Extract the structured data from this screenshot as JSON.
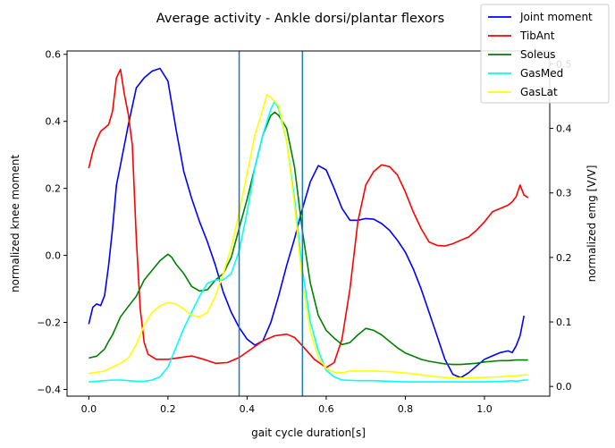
{
  "chart_data": {
    "type": "line",
    "title": "Average activity - Ankle dorsi/plantar flexors",
    "xlabel": "gait cycle duration[s]",
    "ylabel_left": "normalized knee moment",
    "ylabel_right": "normalized emg [V/V]",
    "xlim": [
      -0.055,
      1.165
    ],
    "ylim_left": [
      -0.42,
      0.61
    ],
    "ylim_right": [
      -0.015,
      0.52
    ],
    "xticks": [
      "0.0",
      "0.2",
      "0.4",
      "0.6",
      "0.8",
      "1.0"
    ],
    "xtick_values": [
      0,
      0.2,
      0.4,
      0.6,
      0.8,
      1.0
    ],
    "yticks_left": [
      "−0.4",
      "−0.2",
      "0.0",
      "0.2",
      "0.4",
      "0.6"
    ],
    "ytick_values_left": [
      -0.4,
      -0.2,
      0,
      0.2,
      0.4,
      0.6
    ],
    "yticks_right": [
      "0.0",
      "0.1",
      "0.2",
      "0.3",
      "0.4",
      "0.5"
    ],
    "ytick_values_right": [
      0,
      0.1,
      0.2,
      0.3,
      0.4,
      0.5
    ],
    "vlines": [
      0.38,
      0.54
    ],
    "vline_color": "#1f77b4",
    "legend_position": "top-right",
    "series": [
      {
        "name": "Joint moment",
        "axis": "left",
        "color": "#0000ff",
        "points": [
          [
            0.0,
            -0.205
          ],
          [
            0.01,
            -0.155
          ],
          [
            0.02,
            -0.145
          ],
          [
            0.03,
            -0.15
          ],
          [
            0.04,
            -0.12
          ],
          [
            0.05,
            -0.03
          ],
          [
            0.06,
            0.08
          ],
          [
            0.07,
            0.21
          ],
          [
            0.08,
            0.27
          ],
          [
            0.1,
            0.39
          ],
          [
            0.12,
            0.5
          ],
          [
            0.14,
            0.53
          ],
          [
            0.16,
            0.55
          ],
          [
            0.18,
            0.558
          ],
          [
            0.2,
            0.52
          ],
          [
            0.22,
            0.38
          ],
          [
            0.24,
            0.25
          ],
          [
            0.26,
            0.17
          ],
          [
            0.28,
            0.1
          ],
          [
            0.3,
            0.04
          ],
          [
            0.32,
            -0.03
          ],
          [
            0.34,
            -0.11
          ],
          [
            0.36,
            -0.17
          ],
          [
            0.38,
            -0.215
          ],
          [
            0.4,
            -0.25
          ],
          [
            0.42,
            -0.268
          ],
          [
            0.44,
            -0.255
          ],
          [
            0.46,
            -0.2
          ],
          [
            0.48,
            -0.12
          ],
          [
            0.5,
            -0.03
          ],
          [
            0.52,
            0.05
          ],
          [
            0.54,
            0.14
          ],
          [
            0.56,
            0.22
          ],
          [
            0.58,
            0.268
          ],
          [
            0.6,
            0.255
          ],
          [
            0.62,
            0.2
          ],
          [
            0.64,
            0.14
          ],
          [
            0.66,
            0.105
          ],
          [
            0.68,
            0.105
          ],
          [
            0.7,
            0.11
          ],
          [
            0.72,
            0.108
          ],
          [
            0.74,
            0.095
          ],
          [
            0.76,
            0.075
          ],
          [
            0.78,
            0.045
          ],
          [
            0.8,
            0.01
          ],
          [
            0.82,
            -0.04
          ],
          [
            0.84,
            -0.1
          ],
          [
            0.86,
            -0.17
          ],
          [
            0.88,
            -0.24
          ],
          [
            0.9,
            -0.31
          ],
          [
            0.92,
            -0.355
          ],
          [
            0.94,
            -0.365
          ],
          [
            0.96,
            -0.35
          ],
          [
            0.98,
            -0.33
          ],
          [
            1.0,
            -0.31
          ],
          [
            1.02,
            -0.3
          ],
          [
            1.04,
            -0.29
          ],
          [
            1.06,
            -0.285
          ],
          [
            1.07,
            -0.29
          ],
          [
            1.08,
            -0.27
          ],
          [
            1.09,
            -0.24
          ],
          [
            1.1,
            -0.18
          ]
        ]
      },
      {
        "name": "TibAnt",
        "axis": "left",
        "color": "#ff0000",
        "points": [
          [
            0.0,
            0.26
          ],
          [
            0.01,
            0.31
          ],
          [
            0.02,
            0.345
          ],
          [
            0.03,
            0.37
          ],
          [
            0.05,
            0.39
          ],
          [
            0.06,
            0.43
          ],
          [
            0.07,
            0.53
          ],
          [
            0.08,
            0.555
          ],
          [
            0.09,
            0.48
          ],
          [
            0.1,
            0.42
          ],
          [
            0.11,
            0.33
          ],
          [
            0.12,
            0.05
          ],
          [
            0.13,
            -0.16
          ],
          [
            0.14,
            -0.26
          ],
          [
            0.15,
            -0.295
          ],
          [
            0.17,
            -0.31
          ],
          [
            0.2,
            -0.31
          ],
          [
            0.23,
            -0.305
          ],
          [
            0.26,
            -0.3
          ],
          [
            0.29,
            -0.31
          ],
          [
            0.32,
            -0.322
          ],
          [
            0.35,
            -0.32
          ],
          [
            0.38,
            -0.305
          ],
          [
            0.41,
            -0.28
          ],
          [
            0.44,
            -0.255
          ],
          [
            0.47,
            -0.24
          ],
          [
            0.5,
            -0.235
          ],
          [
            0.52,
            -0.245
          ],
          [
            0.54,
            -0.27
          ],
          [
            0.57,
            -0.31
          ],
          [
            0.6,
            -0.335
          ],
          [
            0.62,
            -0.32
          ],
          [
            0.64,
            -0.25
          ],
          [
            0.66,
            -0.1
          ],
          [
            0.68,
            0.1
          ],
          [
            0.7,
            0.21
          ],
          [
            0.72,
            0.25
          ],
          [
            0.74,
            0.27
          ],
          [
            0.76,
            0.265
          ],
          [
            0.78,
            0.24
          ],
          [
            0.8,
            0.19
          ],
          [
            0.82,
            0.13
          ],
          [
            0.84,
            0.08
          ],
          [
            0.86,
            0.04
          ],
          [
            0.88,
            0.03
          ],
          [
            0.9,
            0.028
          ],
          [
            0.92,
            0.035
          ],
          [
            0.94,
            0.045
          ],
          [
            0.96,
            0.055
          ],
          [
            0.98,
            0.075
          ],
          [
            1.0,
            0.1
          ],
          [
            1.02,
            0.13
          ],
          [
            1.04,
            0.14
          ],
          [
            1.06,
            0.15
          ],
          [
            1.07,
            0.16
          ],
          [
            1.08,
            0.175
          ],
          [
            1.09,
            0.21
          ],
          [
            1.1,
            0.18
          ],
          [
            1.11,
            0.172
          ]
        ]
      },
      {
        "name": "Soleus",
        "axis": "right",
        "color": "#008000",
        "points": [
          [
            0.0,
            0.044
          ],
          [
            0.02,
            0.047
          ],
          [
            0.04,
            0.058
          ],
          [
            0.05,
            0.07
          ],
          [
            0.06,
            0.08
          ],
          [
            0.08,
            0.108
          ],
          [
            0.1,
            0.124
          ],
          [
            0.12,
            0.14
          ],
          [
            0.14,
            0.165
          ],
          [
            0.16,
            0.18
          ],
          [
            0.18,
            0.195
          ],
          [
            0.2,
            0.205
          ],
          [
            0.21,
            0.2
          ],
          [
            0.22,
            0.19
          ],
          [
            0.24,
            0.175
          ],
          [
            0.26,
            0.155
          ],
          [
            0.28,
            0.148
          ],
          [
            0.3,
            0.15
          ],
          [
            0.32,
            0.165
          ],
          [
            0.34,
            0.175
          ],
          [
            0.36,
            0.2
          ],
          [
            0.38,
            0.245
          ],
          [
            0.4,
            0.29
          ],
          [
            0.42,
            0.34
          ],
          [
            0.44,
            0.39
          ],
          [
            0.46,
            0.42
          ],
          [
            0.47,
            0.425
          ],
          [
            0.48,
            0.42
          ],
          [
            0.5,
            0.4
          ],
          [
            0.52,
            0.34
          ],
          [
            0.54,
            0.24
          ],
          [
            0.56,
            0.16
          ],
          [
            0.58,
            0.11
          ],
          [
            0.6,
            0.087
          ],
          [
            0.62,
            0.075
          ],
          [
            0.64,
            0.065
          ],
          [
            0.66,
            0.068
          ],
          [
            0.68,
            0.08
          ],
          [
            0.7,
            0.09
          ],
          [
            0.72,
            0.087
          ],
          [
            0.74,
            0.08
          ],
          [
            0.76,
            0.07
          ],
          [
            0.78,
            0.06
          ],
          [
            0.8,
            0.052
          ],
          [
            0.82,
            0.047
          ],
          [
            0.84,
            0.042
          ],
          [
            0.86,
            0.039
          ],
          [
            0.88,
            0.037
          ],
          [
            0.9,
            0.035
          ],
          [
            0.92,
            0.034
          ],
          [
            0.94,
            0.034
          ],
          [
            0.96,
            0.035
          ],
          [
            0.98,
            0.036
          ],
          [
            1.0,
            0.038
          ],
          [
            1.02,
            0.039
          ],
          [
            1.04,
            0.04
          ],
          [
            1.06,
            0.04
          ],
          [
            1.08,
            0.041
          ],
          [
            1.1,
            0.041
          ],
          [
            1.11,
            0.041
          ]
        ]
      },
      {
        "name": "GasMed",
        "axis": "right",
        "color": "#00ffff",
        "points": [
          [
            0.0,
            0.007
          ],
          [
            0.02,
            0.008
          ],
          [
            0.04,
            0.009
          ],
          [
            0.06,
            0.01
          ],
          [
            0.08,
            0.01
          ],
          [
            0.1,
            0.009
          ],
          [
            0.12,
            0.008
          ],
          [
            0.14,
            0.008
          ],
          [
            0.16,
            0.01
          ],
          [
            0.18,
            0.015
          ],
          [
            0.2,
            0.03
          ],
          [
            0.22,
            0.06
          ],
          [
            0.24,
            0.09
          ],
          [
            0.26,
            0.115
          ],
          [
            0.28,
            0.14
          ],
          [
            0.3,
            0.16
          ],
          [
            0.32,
            0.165
          ],
          [
            0.34,
            0.165
          ],
          [
            0.36,
            0.175
          ],
          [
            0.38,
            0.21
          ],
          [
            0.4,
            0.27
          ],
          [
            0.42,
            0.34
          ],
          [
            0.44,
            0.39
          ],
          [
            0.46,
            0.43
          ],
          [
            0.47,
            0.442
          ],
          [
            0.48,
            0.43
          ],
          [
            0.5,
            0.38
          ],
          [
            0.52,
            0.29
          ],
          [
            0.54,
            0.18
          ],
          [
            0.56,
            0.1
          ],
          [
            0.58,
            0.055
          ],
          [
            0.6,
            0.025
          ],
          [
            0.62,
            0.015
          ],
          [
            0.64,
            0.01
          ],
          [
            0.68,
            0.009
          ],
          [
            0.72,
            0.009
          ],
          [
            0.76,
            0.008
          ],
          [
            0.8,
            0.007
          ],
          [
            0.85,
            0.007
          ],
          [
            0.9,
            0.007
          ],
          [
            0.95,
            0.007
          ],
          [
            1.0,
            0.007
          ],
          [
            1.05,
            0.008
          ],
          [
            1.07,
            0.009
          ],
          [
            1.08,
            0.008
          ],
          [
            1.1,
            0.01
          ],
          [
            1.11,
            0.01
          ]
        ]
      },
      {
        "name": "GasLat",
        "axis": "right",
        "color": "#ffff00",
        "points": [
          [
            0.0,
            0.02
          ],
          [
            0.02,
            0.022
          ],
          [
            0.04,
            0.024
          ],
          [
            0.06,
            0.03
          ],
          [
            0.08,
            0.036
          ],
          [
            0.1,
            0.044
          ],
          [
            0.12,
            0.065
          ],
          [
            0.14,
            0.095
          ],
          [
            0.16,
            0.115
          ],
          [
            0.18,
            0.125
          ],
          [
            0.2,
            0.13
          ],
          [
            0.22,
            0.128
          ],
          [
            0.24,
            0.12
          ],
          [
            0.26,
            0.11
          ],
          [
            0.28,
            0.108
          ],
          [
            0.3,
            0.115
          ],
          [
            0.32,
            0.14
          ],
          [
            0.34,
            0.175
          ],
          [
            0.36,
            0.215
          ],
          [
            0.38,
            0.27
          ],
          [
            0.4,
            0.33
          ],
          [
            0.42,
            0.39
          ],
          [
            0.44,
            0.43
          ],
          [
            0.45,
            0.452
          ],
          [
            0.46,
            0.448
          ],
          [
            0.48,
            0.435
          ],
          [
            0.5,
            0.38
          ],
          [
            0.52,
            0.28
          ],
          [
            0.54,
            0.16
          ],
          [
            0.56,
            0.085
          ],
          [
            0.58,
            0.045
          ],
          [
            0.6,
            0.028
          ],
          [
            0.62,
            0.022
          ],
          [
            0.64,
            0.021
          ],
          [
            0.66,
            0.024
          ],
          [
            0.68,
            0.024
          ],
          [
            0.72,
            0.024
          ],
          [
            0.76,
            0.023
          ],
          [
            0.8,
            0.021
          ],
          [
            0.84,
            0.018
          ],
          [
            0.88,
            0.015
          ],
          [
            0.92,
            0.013
          ],
          [
            0.96,
            0.013
          ],
          [
            1.0,
            0.014
          ],
          [
            1.04,
            0.015
          ],
          [
            1.06,
            0.016
          ],
          [
            1.08,
            0.016
          ],
          [
            1.1,
            0.018
          ],
          [
            1.11,
            0.018
          ]
        ]
      }
    ]
  }
}
